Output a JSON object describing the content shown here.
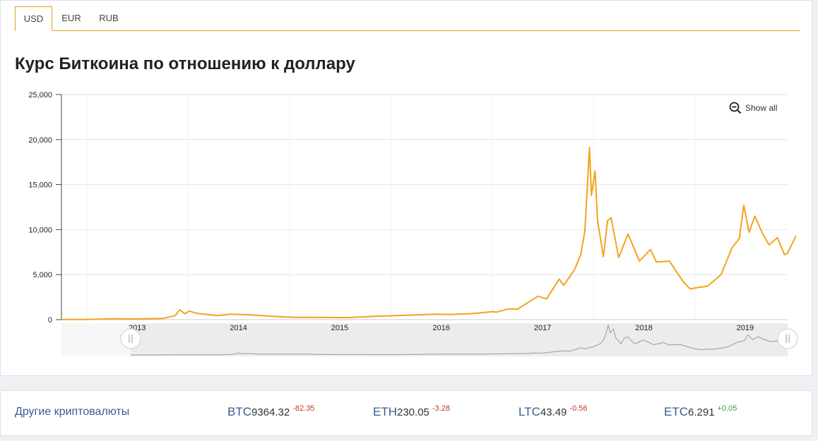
{
  "tabs": [
    {
      "label": "USD",
      "active": true
    },
    {
      "label": "EUR",
      "active": false
    },
    {
      "label": "RUB",
      "active": false
    }
  ],
  "page_title": "Курс Биткоина по отношению к доллару",
  "zoom_button": {
    "label": "Show all",
    "icon": "zoom-out-icon"
  },
  "colors": {
    "series": "#f3a31c",
    "navigator_line": "#9a9a9a",
    "tab_accent": "#e2a21a",
    "link": "#3a5b92",
    "negative": "#c0392b",
    "positive": "#3b9a3b"
  },
  "chart_data": {
    "type": "line",
    "title": "",
    "xlabel": "",
    "ylabel": "",
    "ylim": [
      0,
      25000
    ],
    "y_ticks": [
      "0",
      "5,000",
      "10,000",
      "15,000",
      "20,000",
      "25,000"
    ],
    "y_tick_values": [
      0,
      5000,
      10000,
      15000,
      20000,
      25000
    ],
    "x_ticks": [
      "2013",
      "2014",
      "2015",
      "2016",
      "2017",
      "2018",
      "2019"
    ],
    "x_range": [
      "2012-10",
      "2019-12"
    ],
    "grid": true,
    "legend": "none",
    "navigator": true,
    "series": [
      {
        "name": "",
        "x": [
          "2012-10",
          "2013-01",
          "2013-04",
          "2013-07",
          "2013-10",
          "2013-11-15",
          "2013-12-01",
          "2013-12-20",
          "2014-01-05",
          "2014-02-01",
          "2014-03-01",
          "2014-04-15",
          "2014-06-01",
          "2014-08-01",
          "2014-11-01",
          "2015-01-15",
          "2015-04-01",
          "2015-08-01",
          "2015-11-05",
          "2016-01-01",
          "2016-06-15",
          "2016-08-01",
          "2016-11-01",
          "2017-01-05",
          "2017-01-15",
          "2017-03-01",
          "2017-04-01",
          "2017-05-20",
          "2017-06-15",
          "2017-07-15",
          "2017-08-30",
          "2017-09-15",
          "2017-10-25",
          "2017-11-15",
          "2017-11-30",
          "2017-12-17",
          "2017-12-24",
          "2018-01-06",
          "2018-01-15",
          "2018-02-05",
          "2018-02-20",
          "2018-03-05",
          "2018-04-01",
          "2018-05-05",
          "2018-06-15",
          "2018-07-25",
          "2018-08-15",
          "2018-10-01",
          "2018-11-20",
          "2018-12-15",
          "2019-01-15",
          "2019-02-15",
          "2019-04-05",
          "2019-05-15",
          "2019-06-10",
          "2019-06-26",
          "2019-07-15",
          "2019-08-05",
          "2019-09-01",
          "2019-09-25",
          "2019-10-25",
          "2019-11-20",
          "2019-12-01",
          "2019-12-31"
        ],
        "values": [
          12,
          13,
          100,
          80,
          130,
          450,
          1100,
          650,
          950,
          700,
          600,
          450,
          600,
          550,
          380,
          250,
          250,
          230,
          380,
          430,
          600,
          570,
          700,
          900,
          820,
          1200,
          1150,
          2100,
          2600,
          2300,
          4500,
          3800,
          5600,
          7200,
          9800,
          19100,
          13800,
          16500,
          11000,
          7000,
          11000,
          11300,
          6900,
          9500,
          6500,
          7800,
          6400,
          6500,
          4200,
          3400,
          3600,
          3700,
          5000,
          8000,
          9000,
          12700,
          9700,
          11500,
          9600,
          8300,
          9100,
          7200,
          7400,
          9300
        ]
      }
    ]
  },
  "footer": {
    "other_label": "Другие криптовалюты",
    "coins": [
      {
        "symbol": "BTC",
        "price": "9364.32",
        "change": "-82.35",
        "direction": "neg"
      },
      {
        "symbol": "ETH",
        "price": "230.05",
        "change": "-3.28",
        "direction": "neg"
      },
      {
        "symbol": "LTC",
        "price": "43.49",
        "change": "-0.56",
        "direction": "neg"
      },
      {
        "symbol": "ETC",
        "price": "6.291",
        "change": "+0.05",
        "direction": "pos"
      }
    ]
  }
}
